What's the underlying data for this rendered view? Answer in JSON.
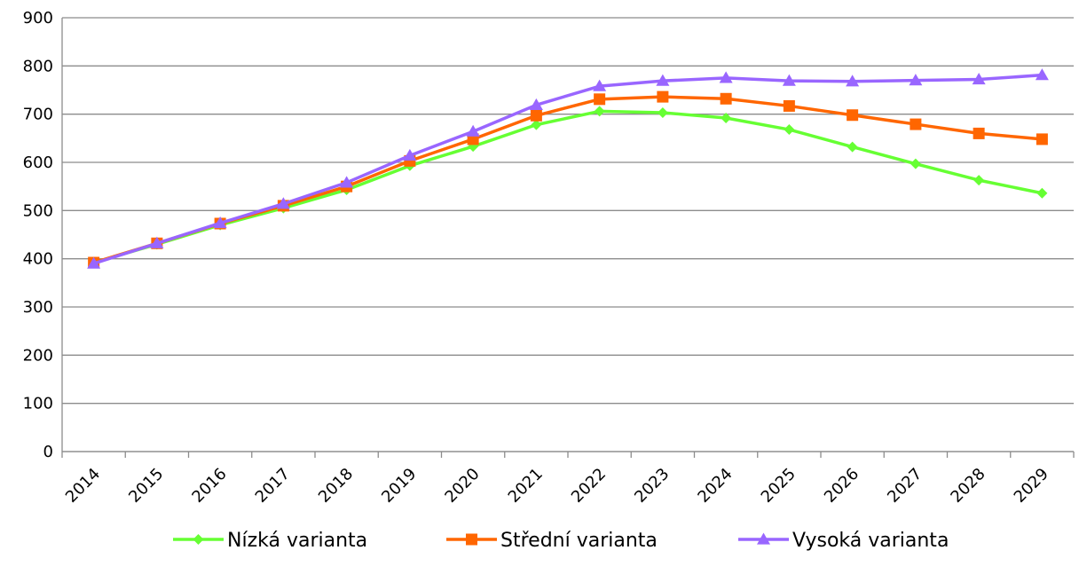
{
  "chart_data": {
    "type": "line",
    "title": "",
    "xlabel": "",
    "ylabel": "",
    "x": [
      "2014",
      "2015",
      "2016",
      "2017",
      "2018",
      "2019",
      "2020",
      "2021",
      "2022",
      "2023",
      "2024",
      "2025",
      "2026",
      "2027",
      "2028",
      "2029"
    ],
    "ylim": [
      0,
      900
    ],
    "yticks": [
      0,
      100,
      200,
      300,
      400,
      500,
      600,
      700,
      800,
      900
    ],
    "grid": true,
    "legend_position": "bottom",
    "series": [
      {
        "name": "Nízká varianta",
        "color": "#66ff33",
        "marker": "diamond",
        "values": [
          392,
          430,
          470,
          505,
          543,
          593,
          633,
          678,
          706,
          703,
          692,
          668,
          632,
          597,
          563,
          536
        ]
      },
      {
        "name": "Střední varianta",
        "color": "#ff6600",
        "marker": "square",
        "values": [
          392,
          432,
          473,
          510,
          550,
          603,
          648,
          697,
          731,
          736,
          732,
          717,
          698,
          679,
          660,
          648
        ]
      },
      {
        "name": "Vysoká varianta",
        "color": "#9966ff",
        "marker": "triangle",
        "values": [
          390,
          432,
          474,
          514,
          558,
          614,
          664,
          719,
          758,
          769,
          775,
          769,
          768,
          770,
          772,
          781
        ]
      }
    ]
  }
}
